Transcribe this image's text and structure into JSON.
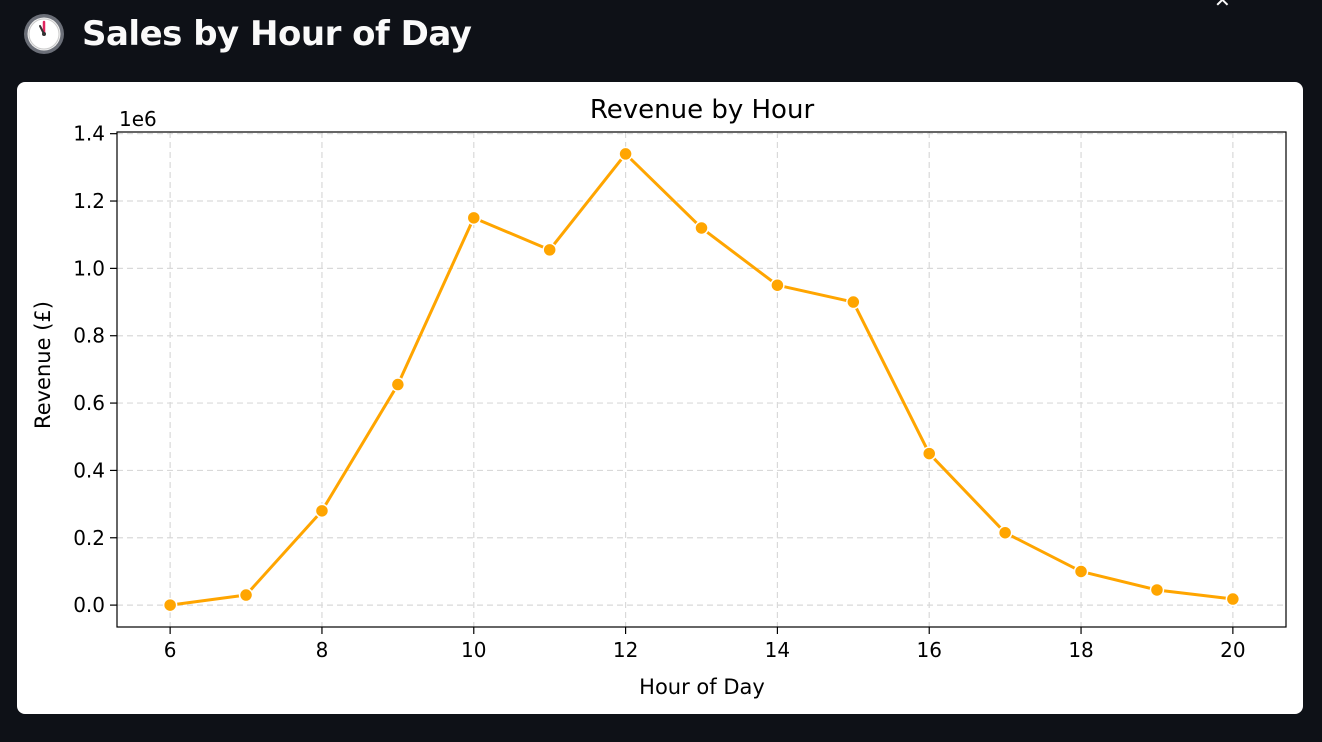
{
  "header": {
    "title": "Sales by Hour of Day",
    "icon": "clock-icon"
  },
  "colors": {
    "background": "#0e1117",
    "card": "#ffffff",
    "series": "#ffa500",
    "grid": "#d9d9d9"
  },
  "chart_data": {
    "type": "line",
    "title": "Revenue by Hour",
    "xlabel": "Hour of Day",
    "ylabel": "Revenue (£)",
    "offset_label": "1e6",
    "x": [
      6,
      7,
      8,
      9,
      10,
      11,
      12,
      13,
      14,
      15,
      16,
      17,
      18,
      19,
      20
    ],
    "y": [
      0.0,
      0.03,
      0.28,
      0.655,
      1.15,
      1.055,
      1.34,
      1.12,
      0.95,
      0.9,
      0.45,
      0.215,
      0.1,
      0.045,
      0.018
    ],
    "y_multiplier": 1000000,
    "xticks": [
      "6",
      "8",
      "10",
      "12",
      "14",
      "16",
      "18",
      "20"
    ],
    "yticks": [
      "0.0",
      "0.2",
      "0.4",
      "0.6",
      "0.8",
      "1.0",
      "1.2",
      "1.4"
    ],
    "xlim": [
      5.3,
      20.7
    ],
    "ylim": [
      -0.065,
      1.405
    ],
    "grid": true,
    "marker": "circle"
  }
}
